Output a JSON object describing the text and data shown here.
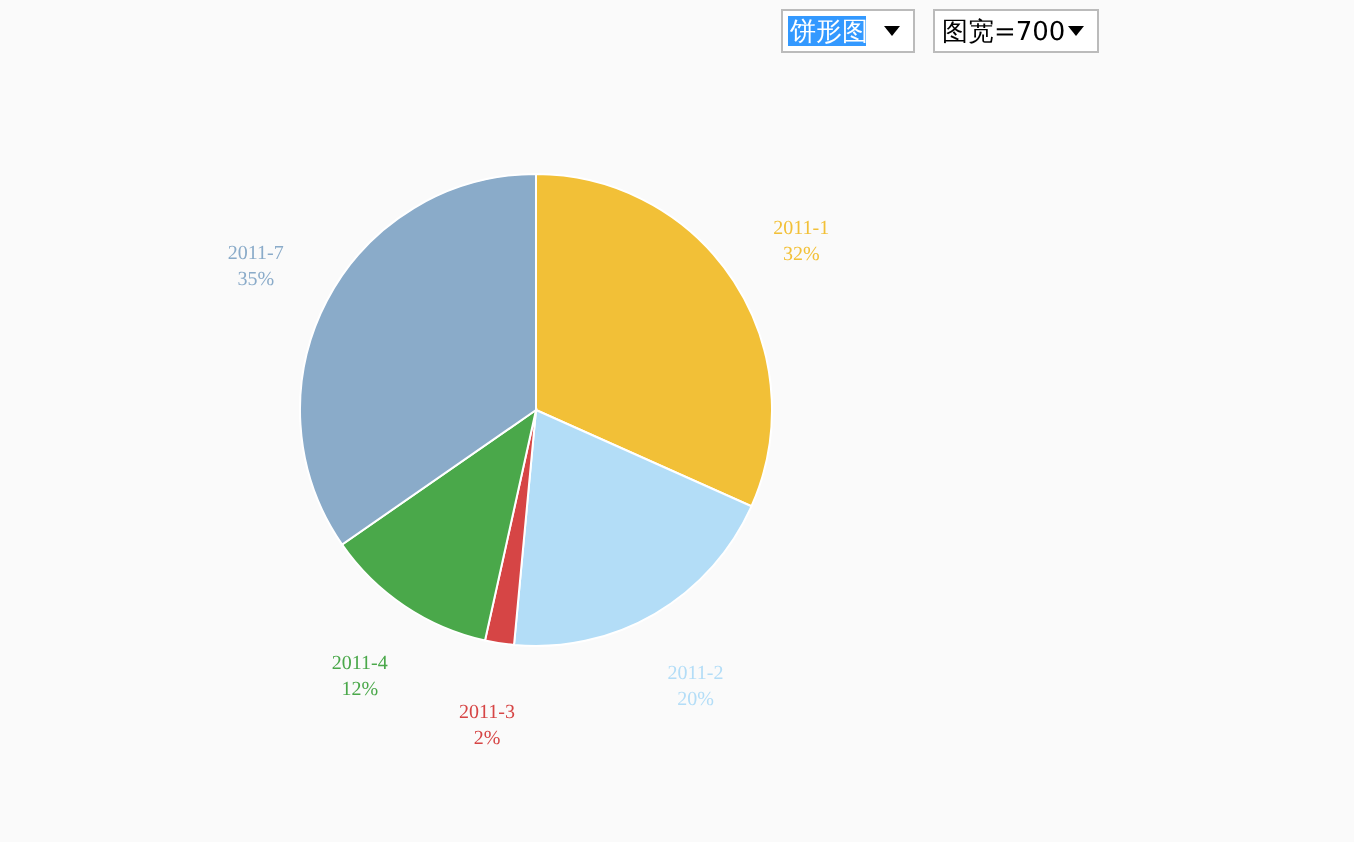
{
  "chart_data": {
    "type": "pie",
    "categories": [
      "2011-1",
      "2011-2",
      "2011-3",
      "2011-4",
      "2011-7"
    ],
    "values": [
      32,
      20,
      2,
      12,
      35
    ],
    "value_labels": [
      "32%",
      "20%",
      "2%",
      "12%",
      "35%"
    ],
    "colors": [
      "#f2c037",
      "#b3ddf7",
      "#d64545",
      "#4aa84a",
      "#8aabc9"
    ],
    "annotations": [
      "饼形图",
      "图宽=700"
    ]
  }
}
